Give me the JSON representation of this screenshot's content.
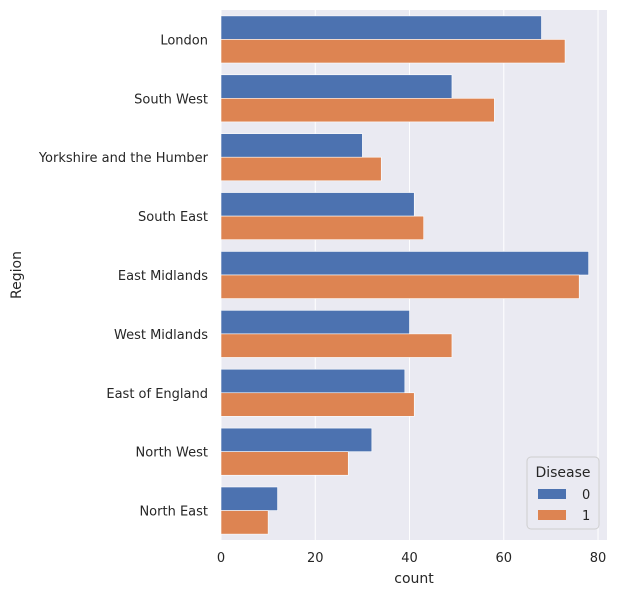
{
  "chart_data": {
    "type": "bar",
    "orientation": "horizontal",
    "categories": [
      "London",
      "South West",
      "Yorkshire and the Humber",
      "South East",
      "East Midlands",
      "West Midlands",
      "East of England",
      "North West",
      "North East"
    ],
    "series": [
      {
        "name": "0",
        "values": [
          68,
          49,
          30,
          41,
          78,
          40,
          39,
          32,
          12
        ],
        "color": "#4c72b0"
      },
      {
        "name": "1",
        "values": [
          73,
          58,
          34,
          43,
          76,
          49,
          41,
          27,
          10
        ],
        "color": "#dd8452"
      }
    ],
    "xlabel": "count",
    "ylabel": "Region",
    "xlim": [
      0,
      81.9
    ],
    "xticks": [
      0,
      20,
      40,
      60,
      80
    ],
    "grid": true,
    "legend": {
      "title": "Disease",
      "placement": "lower-right"
    },
    "background": "#eaeaf2",
    "grid_color": "#ffffff"
  }
}
